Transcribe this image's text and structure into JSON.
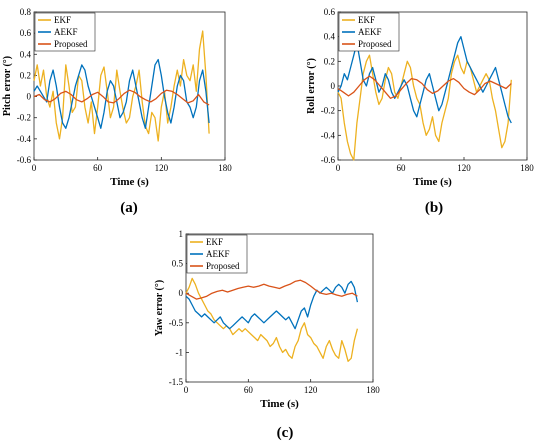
{
  "colors": {
    "ekf": "#EDB120",
    "aekf": "#0072BD",
    "proposed": "#D95319",
    "axis": "#262626",
    "grid": "#f0f0f0"
  },
  "panels": [
    {
      "id": "a",
      "label": "(a)"
    },
    {
      "id": "b",
      "label": "(b)"
    },
    {
      "id": "c",
      "label": "(c)"
    }
  ],
  "chart_data": [
    {
      "type": "line",
      "panel": "(a)",
      "xlabel": "Time (s)",
      "ylabel": "Pitch error (°)",
      "xlim": [
        0,
        180
      ],
      "ylim": [
        -0.6,
        0.8
      ],
      "xticks": [
        "0",
        "60",
        "120",
        "180"
      ],
      "yticks": [
        "-0.6",
        "-0.4",
        "-0.2",
        "0",
        "0.2",
        "0.4",
        "0.6",
        "0.8"
      ],
      "legend_position": "top-left",
      "series": [
        {
          "name": "EKF",
          "color": "#EDB120",
          "x": [
            0,
            3,
            6,
            9,
            12,
            15,
            18,
            21,
            24,
            27,
            30,
            33,
            36,
            39,
            42,
            45,
            48,
            51,
            54,
            57,
            60,
            63,
            66,
            69,
            72,
            75,
            78,
            81,
            84,
            87,
            90,
            93,
            96,
            99,
            102,
            105,
            108,
            111,
            114,
            117,
            120,
            123,
            126,
            129,
            132,
            135,
            138,
            141,
            144,
            147,
            150,
            153,
            156,
            159,
            162,
            165
          ],
          "y": [
            0.15,
            0.3,
            0.1,
            0.25,
            0.0,
            -0.1,
            0.05,
            -0.25,
            -0.4,
            -0.2,
            0.3,
            0.1,
            -0.15,
            -0.1,
            0.2,
            0.15,
            -0.1,
            -0.25,
            -0.05,
            -0.35,
            -0.1,
            0.2,
            0.28,
            0.05,
            -0.2,
            -0.1,
            0.25,
            0.05,
            -0.12,
            -0.25,
            -0.2,
            0.0,
            0.1,
            0.25,
            -0.05,
            -0.28,
            -0.35,
            -0.15,
            -0.2,
            -0.42,
            -0.1,
            0.05,
            -0.25,
            -0.1,
            0.1,
            0.25,
            0.1,
            0.35,
            0.2,
            0.15,
            0.3,
            0.05,
            0.45,
            0.62,
            0.2,
            -0.35
          ]
        },
        {
          "name": "AEKF",
          "color": "#0072BD",
          "x": [
            0,
            3,
            6,
            9,
            12,
            15,
            18,
            21,
            24,
            27,
            30,
            33,
            36,
            39,
            42,
            45,
            48,
            51,
            54,
            57,
            60,
            63,
            66,
            69,
            72,
            75,
            78,
            81,
            84,
            87,
            90,
            93,
            96,
            99,
            102,
            105,
            108,
            111,
            114,
            117,
            120,
            123,
            126,
            129,
            132,
            135,
            138,
            141,
            144,
            147,
            150,
            153,
            156,
            159,
            162,
            165
          ],
          "y": [
            0.05,
            0.1,
            0.05,
            0.0,
            -0.05,
            0.15,
            0.25,
            0.1,
            -0.1,
            -0.25,
            -0.3,
            -0.2,
            -0.05,
            0.1,
            0.2,
            0.3,
            0.25,
            0.1,
            0.0,
            -0.1,
            -0.2,
            -0.3,
            -0.15,
            0.05,
            0.15,
            0.1,
            -0.05,
            -0.2,
            -0.15,
            -0.05,
            0.15,
            0.25,
            0.1,
            -0.05,
            -0.2,
            -0.3,
            -0.1,
            0.1,
            0.3,
            0.35,
            0.2,
            0.0,
            -0.15,
            -0.25,
            -0.1,
            0.1,
            0.2,
            0.15,
            -0.05,
            -0.1,
            -0.2,
            -0.1,
            0.15,
            0.25,
            0.05,
            -0.25
          ]
        },
        {
          "name": "Proposed",
          "color": "#D95319",
          "x": [
            0,
            5,
            10,
            15,
            20,
            25,
            30,
            35,
            40,
            45,
            50,
            55,
            60,
            65,
            70,
            75,
            80,
            85,
            90,
            95,
            100,
            105,
            110,
            115,
            120,
            125,
            130,
            135,
            140,
            145,
            150,
            155,
            160,
            165
          ],
          "y": [
            0.0,
            0.02,
            -0.03,
            -0.05,
            -0.02,
            0.03,
            0.05,
            0.02,
            -0.03,
            -0.05,
            -0.02,
            0.02,
            0.04,
            0.0,
            -0.05,
            -0.06,
            -0.02,
            0.03,
            0.06,
            0.04,
            0.0,
            -0.03,
            -0.05,
            -0.02,
            0.03,
            0.06,
            0.05,
            0.02,
            -0.02,
            -0.06,
            -0.04,
            0.02,
            -0.05,
            -0.08
          ]
        }
      ]
    },
    {
      "type": "line",
      "panel": "(b)",
      "xlabel": "Time (s)",
      "ylabel": "Roll error (°)",
      "xlim": [
        0,
        180
      ],
      "ylim": [
        -0.6,
        0.6
      ],
      "xticks": [
        "0",
        "60",
        "120",
        "180"
      ],
      "yticks": [
        "-0.6",
        "-0.4",
        "-0.2",
        "0",
        "0.2",
        "0.4",
        "0.6"
      ],
      "legend_position": "top-left",
      "series": [
        {
          "name": "EKF",
          "color": "#EDB120",
          "x": [
            0,
            3,
            6,
            9,
            12,
            15,
            18,
            21,
            24,
            27,
            30,
            33,
            36,
            39,
            42,
            45,
            48,
            51,
            54,
            57,
            60,
            63,
            66,
            69,
            72,
            75,
            78,
            81,
            84,
            87,
            90,
            93,
            96,
            99,
            102,
            105,
            108,
            111,
            114,
            117,
            120,
            123,
            126,
            129,
            132,
            135,
            138,
            141,
            144,
            147,
            150,
            153,
            156,
            159,
            162,
            165
          ],
          "y": [
            -0.05,
            -0.1,
            -0.3,
            -0.45,
            -0.55,
            -0.6,
            -0.3,
            -0.1,
            0.1,
            0.2,
            0.25,
            0.1,
            -0.05,
            -0.15,
            -0.1,
            0.05,
            0.15,
            0.1,
            -0.05,
            -0.1,
            0.0,
            0.1,
            0.2,
            0.15,
            0.0,
            -0.1,
            -0.15,
            -0.3,
            -0.4,
            -0.35,
            -0.25,
            -0.4,
            -0.45,
            -0.3,
            -0.2,
            -0.1,
            0.1,
            0.2,
            0.25,
            0.15,
            0.1,
            0.2,
            0.15,
            0.05,
            -0.05,
            0.0,
            0.05,
            0.1,
            0.05,
            -0.1,
            -0.2,
            -0.35,
            -0.5,
            -0.45,
            -0.3,
            0.05
          ]
        },
        {
          "name": "AEKF",
          "color": "#0072BD",
          "x": [
            0,
            3,
            6,
            9,
            12,
            15,
            18,
            21,
            24,
            27,
            30,
            33,
            36,
            39,
            42,
            45,
            48,
            51,
            54,
            57,
            60,
            63,
            66,
            69,
            72,
            75,
            78,
            81,
            84,
            87,
            90,
            93,
            96,
            99,
            102,
            105,
            108,
            111,
            114,
            117,
            120,
            123,
            126,
            129,
            132,
            135,
            138,
            141,
            144,
            147,
            150,
            153,
            156,
            159,
            162,
            165
          ],
          "y": [
            -0.05,
            0.0,
            0.1,
            0.05,
            0.15,
            0.25,
            0.35,
            0.2,
            0.05,
            0.0,
            0.1,
            0.15,
            0.05,
            -0.05,
            0.0,
            0.1,
            0.05,
            -0.05,
            -0.1,
            -0.05,
            0.0,
            0.05,
            0.0,
            -0.1,
            -0.2,
            -0.25,
            -0.15,
            -0.05,
            0.05,
            0.1,
            0.0,
            -0.1,
            -0.2,
            -0.15,
            -0.05,
            0.05,
            0.15,
            0.25,
            0.35,
            0.4,
            0.3,
            0.2,
            0.15,
            0.1,
            0.05,
            0.0,
            -0.05,
            0.0,
            0.05,
            0.1,
            0.15,
            0.05,
            -0.05,
            -0.15,
            -0.25,
            -0.3
          ]
        },
        {
          "name": "Proposed",
          "color": "#D95319",
          "x": [
            0,
            5,
            10,
            15,
            20,
            25,
            30,
            35,
            40,
            45,
            50,
            55,
            60,
            65,
            70,
            75,
            80,
            85,
            90,
            95,
            100,
            105,
            110,
            115,
            120,
            125,
            130,
            135,
            140,
            145,
            150,
            155,
            160,
            165
          ],
          "y": [
            -0.02,
            -0.05,
            -0.08,
            -0.05,
            0.0,
            0.05,
            0.08,
            0.05,
            0.0,
            -0.05,
            -0.1,
            -0.08,
            -0.03,
            0.02,
            0.06,
            0.05,
            0.02,
            -0.03,
            -0.06,
            -0.04,
            0.0,
            0.04,
            0.06,
            0.03,
            -0.02,
            -0.05,
            -0.07,
            -0.03,
            0.02,
            0.04,
            0.02,
            0.0,
            -0.02,
            0.02
          ]
        }
      ]
    },
    {
      "type": "line",
      "panel": "(c)",
      "xlabel": "Time (s)",
      "ylabel": "Yaw error (°)",
      "xlim": [
        0,
        180
      ],
      "ylim": [
        -1.5,
        1
      ],
      "xticks": [
        "0",
        "60",
        "120",
        "180"
      ],
      "yticks": [
        "-1.5",
        "-1",
        "-0.5",
        "0",
        "0.5",
        "1"
      ],
      "legend_position": "top-left",
      "series": [
        {
          "name": "EKF",
          "color": "#EDB120",
          "x": [
            0,
            3,
            6,
            9,
            12,
            15,
            18,
            21,
            24,
            27,
            30,
            33,
            36,
            39,
            42,
            45,
            48,
            51,
            54,
            57,
            60,
            63,
            66,
            69,
            72,
            75,
            78,
            81,
            84,
            87,
            90,
            93,
            96,
            99,
            102,
            105,
            108,
            111,
            114,
            117,
            120,
            123,
            126,
            129,
            132,
            135,
            138,
            141,
            144,
            147,
            150,
            153,
            156,
            159,
            162,
            165
          ],
          "y": [
            0.0,
            0.1,
            0.25,
            0.15,
            0.0,
            -0.1,
            -0.2,
            -0.3,
            -0.35,
            -0.45,
            -0.5,
            -0.55,
            -0.6,
            -0.55,
            -0.6,
            -0.7,
            -0.65,
            -0.6,
            -0.65,
            -0.6,
            -0.65,
            -0.7,
            -0.75,
            -0.8,
            -0.7,
            -0.75,
            -0.8,
            -0.9,
            -0.85,
            -0.75,
            -0.9,
            -1.0,
            -0.95,
            -1.05,
            -1.1,
            -0.9,
            -0.8,
            -0.6,
            -0.5,
            -0.7,
            -0.75,
            -0.85,
            -0.9,
            -1.0,
            -1.1,
            -0.9,
            -0.8,
            -0.95,
            -1.05,
            -1.1,
            -0.8,
            -0.95,
            -1.15,
            -1.1,
            -0.8,
            -0.6
          ]
        },
        {
          "name": "AEKF",
          "color": "#0072BD",
          "x": [
            0,
            3,
            6,
            9,
            12,
            15,
            18,
            21,
            24,
            27,
            30,
            33,
            36,
            39,
            42,
            45,
            48,
            51,
            54,
            57,
            60,
            63,
            66,
            69,
            72,
            75,
            78,
            81,
            84,
            87,
            90,
            93,
            96,
            99,
            102,
            105,
            108,
            111,
            114,
            117,
            120,
            123,
            126,
            129,
            132,
            135,
            138,
            141,
            144,
            147,
            150,
            153,
            156,
            159,
            162,
            165
          ],
          "y": [
            -0.05,
            -0.1,
            -0.2,
            -0.3,
            -0.35,
            -0.4,
            -0.35,
            -0.4,
            -0.45,
            -0.5,
            -0.45,
            -0.4,
            -0.5,
            -0.55,
            -0.6,
            -0.55,
            -0.5,
            -0.45,
            -0.4,
            -0.45,
            -0.5,
            -0.4,
            -0.35,
            -0.4,
            -0.45,
            -0.5,
            -0.45,
            -0.4,
            -0.35,
            -0.3,
            -0.35,
            -0.4,
            -0.45,
            -0.4,
            -0.5,
            -0.6,
            -0.45,
            -0.3,
            -0.25,
            -0.4,
            -0.2,
            -0.05,
            0.05,
            0.0,
            0.05,
            0.1,
            0.05,
            0.0,
            0.1,
            0.15,
            0.1,
            0.0,
            0.15,
            0.2,
            0.1,
            -0.15
          ]
        },
        {
          "name": "Proposed",
          "color": "#D95319",
          "x": [
            0,
            5,
            10,
            15,
            20,
            25,
            30,
            35,
            40,
            45,
            50,
            55,
            60,
            65,
            70,
            75,
            80,
            85,
            90,
            95,
            100,
            105,
            110,
            115,
            120,
            125,
            130,
            135,
            140,
            145,
            150,
            155,
            160,
            165
          ],
          "y": [
            0.0,
            -0.05,
            -0.1,
            -0.08,
            -0.05,
            0.0,
            0.03,
            0.05,
            0.02,
            0.05,
            0.08,
            0.1,
            0.12,
            0.1,
            0.12,
            0.15,
            0.12,
            0.1,
            0.08,
            0.12,
            0.15,
            0.2,
            0.22,
            0.18,
            0.12,
            0.05,
            0.0,
            -0.02,
            0.0,
            -0.03,
            -0.05,
            -0.02,
            0.0,
            -0.05
          ]
        }
      ]
    }
  ]
}
